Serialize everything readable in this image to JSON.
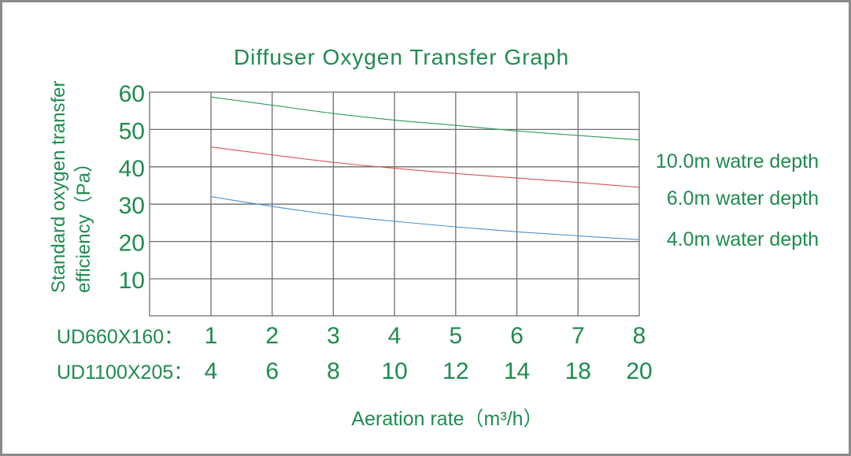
{
  "chart_data": {
    "type": "line",
    "title": "Diffuser Oxygen Transfer Graph",
    "ylabel_line1": "Standard oxygen transfer",
    "ylabel_line2": "efficiency（Pa）",
    "xlabel": "Aeration rate（m³/h）",
    "ylim": [
      0,
      60
    ],
    "yticks": [
      "60",
      "50",
      "40",
      "30",
      "20",
      "10"
    ],
    "ytick_values": [
      60,
      50,
      40,
      30,
      20,
      10
    ],
    "xlim": [
      1,
      8
    ],
    "x_rows": [
      {
        "label": "UD660X160：",
        "ticks": [
          "1",
          "2",
          "3",
          "4",
          "5",
          "6",
          "7",
          "8"
        ]
      },
      {
        "label": "UD1100X205：",
        "ticks": [
          "4",
          "6",
          "8",
          "10",
          "12",
          "14",
          "18",
          "20"
        ]
      }
    ],
    "x": [
      1,
      2,
      3,
      4,
      5,
      6,
      7,
      8
    ],
    "series": [
      {
        "name": "10.0m watre depth",
        "color": "#2e9a5c",
        "values": [
          58.7,
          56.5,
          54.3,
          52.5,
          51.1,
          49.6,
          48.4,
          47.2
        ]
      },
      {
        "name": "6.0m water depth",
        "color": "#d9534f",
        "values": [
          45.3,
          43.2,
          41.2,
          39.6,
          38.2,
          37.0,
          35.8,
          34.5
        ]
      },
      {
        "name": "4.0m water depth",
        "color": "#4a8fd0",
        "values": [
          32.0,
          29.4,
          27.1,
          25.4,
          23.9,
          22.6,
          21.5,
          20.5
        ]
      }
    ],
    "grid": true
  }
}
